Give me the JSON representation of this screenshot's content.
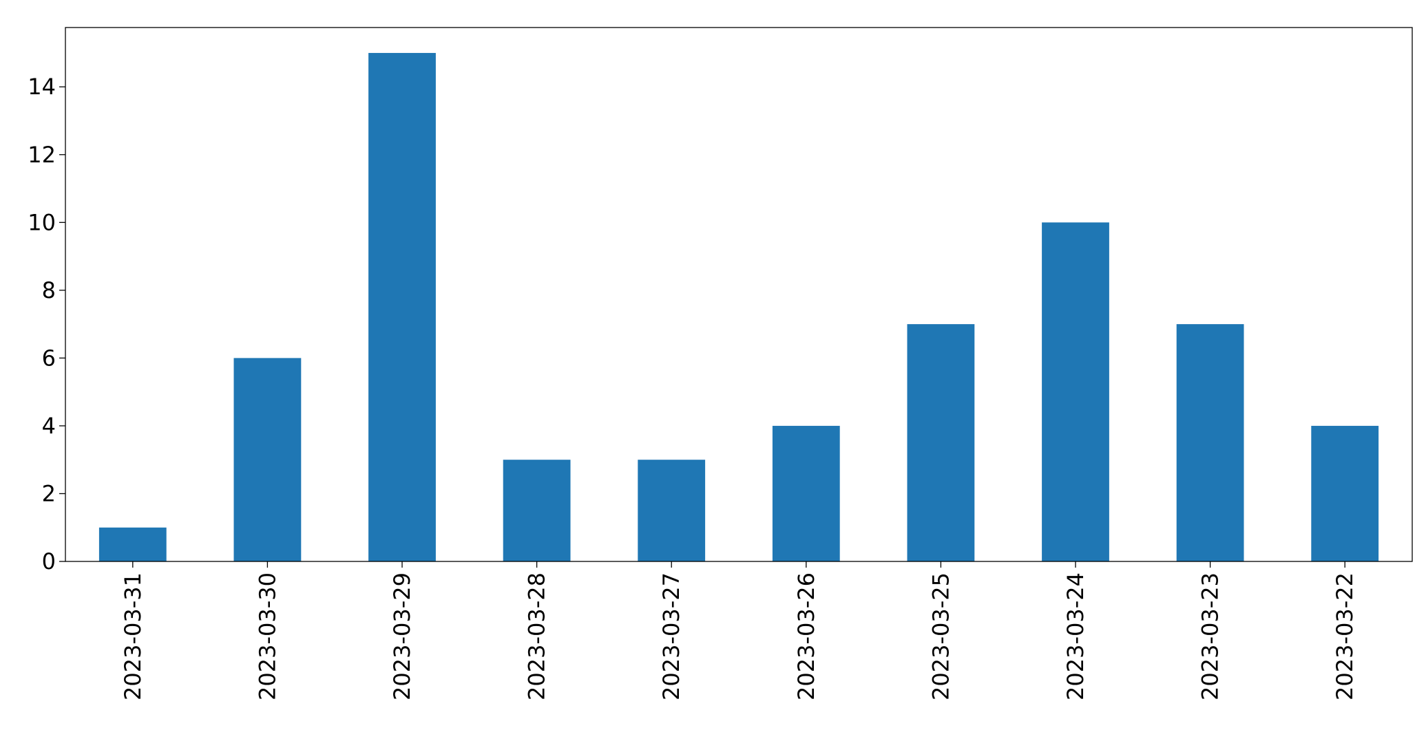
{
  "chart_data": {
    "type": "bar",
    "categories": [
      "2023-03-31",
      "2023-03-30",
      "2023-03-29",
      "2023-03-28",
      "2023-03-27",
      "2023-03-26",
      "2023-03-25",
      "2023-03-24",
      "2023-03-23",
      "2023-03-22"
    ],
    "values": [
      1,
      6,
      15,
      3,
      3,
      4,
      7,
      10,
      7,
      4
    ],
    "color": "#1f77b4",
    "ylim": [
      0,
      15.75
    ],
    "yticks": [
      0,
      2,
      4,
      6,
      8,
      10,
      12,
      14
    ],
    "grid": false
  }
}
